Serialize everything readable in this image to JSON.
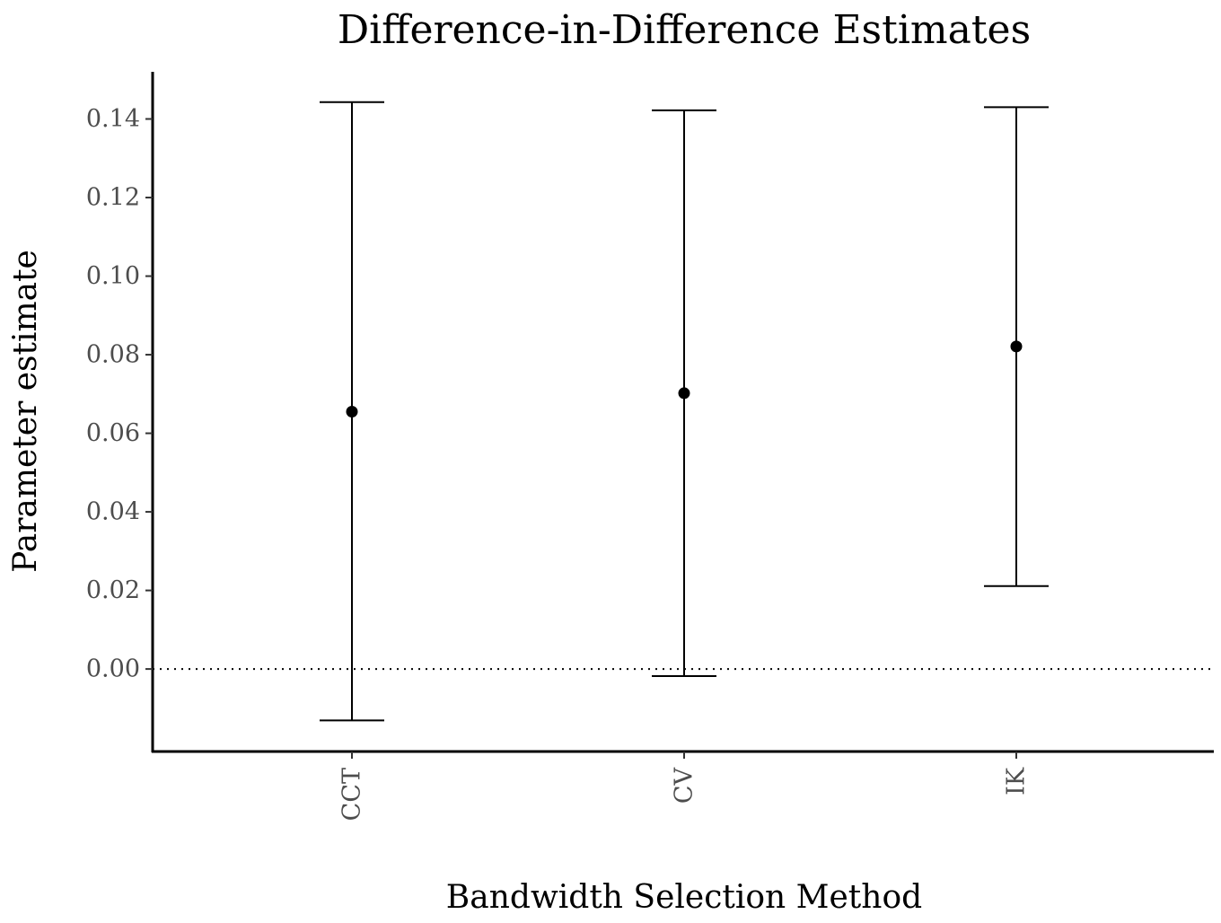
{
  "chart_data": {
    "type": "errorbar",
    "title": "Difference-in-Difference Estimates",
    "xlabel": "Bandwidth Selection Method",
    "ylabel": "Parameter estimate",
    "categories": [
      "CCT",
      "CV",
      "IK"
    ],
    "estimates": [
      0.0655,
      0.0702,
      0.0821
    ],
    "ci_lower": [
      -0.0131,
      -0.0018,
      0.0211
    ],
    "ci_upper": [
      0.1443,
      0.1422,
      0.143
    ],
    "ylim": [
      -0.021,
      0.152
    ],
    "yticks": [
      0.0,
      0.02,
      0.04,
      0.06,
      0.08,
      0.1,
      0.12,
      0.14
    ],
    "ytick_labels": [
      "0.00",
      "0.02",
      "0.04",
      "0.06",
      "0.08",
      "0.10",
      "0.12",
      "0.14"
    ],
    "reference_line": {
      "y": 0,
      "style": "dotted"
    },
    "grid": false,
    "legend": "none",
    "colors": {
      "marks": "#000000",
      "tick_labels": "#4d4d4d"
    }
  }
}
